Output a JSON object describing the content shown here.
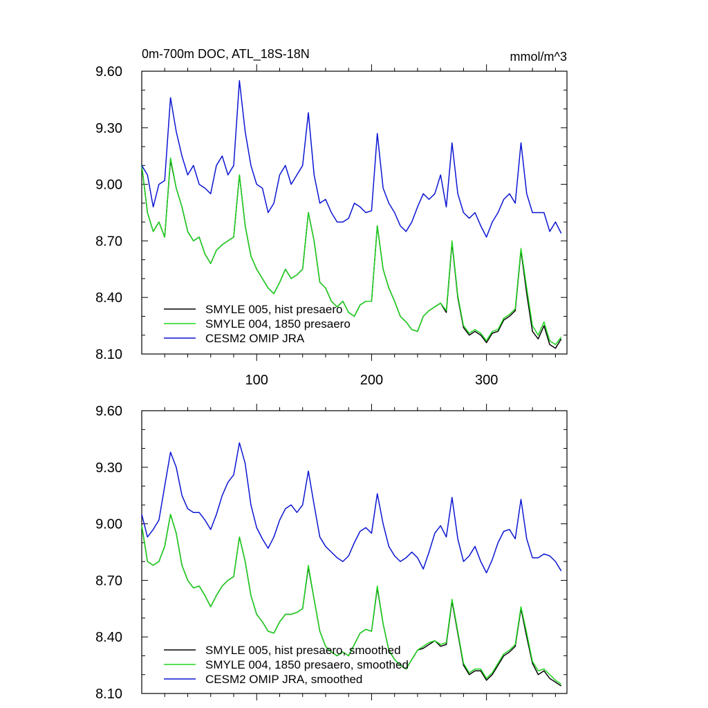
{
  "chart_data": [
    {
      "type": "line",
      "title": "0m-700m DOC, ATL_18S-18N",
      "units": "mmol/m^3",
      "xlim": [
        0,
        370
      ],
      "ylim": [
        8.1,
        9.6
      ],
      "xticks": [
        100,
        200,
        300
      ],
      "xtick_labels": [
        "100",
        "200",
        "300"
      ],
      "yticks": [
        8.1,
        8.4,
        8.7,
        9.0,
        9.3,
        9.6
      ],
      "ytick_labels": [
        "8.10",
        "8.40",
        "8.70",
        "9.00",
        "9.30",
        "9.60"
      ],
      "legend": "bottom-left",
      "legend_entries": [
        "SMYLE 005, hist presaero",
        "SMYLE 004, 1850 presaero",
        "CESM2 OMIP JRA"
      ],
      "series": [
        {
          "name": "SMYLE 005, hist presaero",
          "color": "#000000",
          "x": [
            0,
            5,
            10,
            15,
            20,
            25,
            30,
            35,
            40,
            45,
            50,
            55,
            60,
            65,
            70,
            75,
            80,
            85,
            90,
            95,
            100,
            105,
            110,
            115,
            120,
            125,
            130,
            135,
            140,
            145,
            150,
            155,
            160,
            165,
            170,
            175,
            180,
            185,
            190,
            195,
            200,
            205,
            210,
            215,
            220,
            225,
            230,
            235,
            240,
            245,
            250,
            255,
            260,
            265,
            270,
            275,
            280,
            285,
            290,
            295,
            300,
            305,
            310,
            315,
            320,
            325,
            330,
            335,
            340,
            345,
            350,
            355,
            360,
            365
          ],
          "values": [
            9.1,
            8.85,
            8.75,
            8.8,
            8.72,
            9.13,
            8.98,
            8.88,
            8.75,
            8.7,
            8.72,
            8.63,
            8.58,
            8.65,
            8.68,
            8.7,
            8.72,
            9.05,
            8.78,
            8.62,
            8.55,
            8.5,
            8.45,
            8.42,
            8.48,
            8.55,
            8.5,
            8.52,
            8.55,
            8.85,
            8.7,
            8.48,
            8.45,
            8.38,
            8.35,
            8.38,
            8.32,
            8.3,
            8.36,
            8.38,
            8.38,
            8.78,
            8.55,
            8.45,
            8.38,
            8.3,
            8.27,
            8.23,
            8.22,
            8.3,
            8.33,
            8.35,
            8.37,
            8.32,
            8.69,
            8.4,
            8.24,
            8.2,
            8.22,
            8.2,
            8.16,
            8.21,
            8.22,
            8.28,
            8.3,
            8.33,
            8.65,
            8.42,
            8.22,
            8.18,
            8.25,
            8.15,
            8.13,
            8.18
          ]
        },
        {
          "name": "SMYLE 004, 1850 presaero",
          "color": "#1fd51f",
          "x": [
            0,
            5,
            10,
            15,
            20,
            25,
            30,
            35,
            40,
            45,
            50,
            55,
            60,
            65,
            70,
            75,
            80,
            85,
            90,
            95,
            100,
            105,
            110,
            115,
            120,
            125,
            130,
            135,
            140,
            145,
            150,
            155,
            160,
            165,
            170,
            175,
            180,
            185,
            190,
            195,
            200,
            205,
            210,
            215,
            220,
            225,
            230,
            235,
            240,
            245,
            250,
            255,
            260,
            265,
            270,
            275,
            280,
            285,
            290,
            295,
            300,
            305,
            310,
            315,
            320,
            325,
            330,
            335,
            340,
            345,
            350,
            355,
            360,
            365
          ],
          "values": [
            9.1,
            8.85,
            8.75,
            8.8,
            8.72,
            9.14,
            8.98,
            8.88,
            8.75,
            8.7,
            8.72,
            8.63,
            8.58,
            8.65,
            8.68,
            8.7,
            8.72,
            9.05,
            8.78,
            8.62,
            8.55,
            8.5,
            8.45,
            8.42,
            8.48,
            8.55,
            8.5,
            8.52,
            8.55,
            8.85,
            8.7,
            8.48,
            8.45,
            8.38,
            8.35,
            8.38,
            8.32,
            8.3,
            8.36,
            8.38,
            8.38,
            8.78,
            8.55,
            8.45,
            8.38,
            8.3,
            8.27,
            8.23,
            8.22,
            8.3,
            8.33,
            8.35,
            8.37,
            8.33,
            8.7,
            8.41,
            8.25,
            8.21,
            8.23,
            8.21,
            8.17,
            8.22,
            8.23,
            8.29,
            8.31,
            8.34,
            8.66,
            8.45,
            8.25,
            8.2,
            8.27,
            8.17,
            8.15,
            8.19
          ]
        },
        {
          "name": "CESM2 OMIP JRA",
          "color": "#0a14d2",
          "x": [
            0,
            5,
            10,
            15,
            20,
            25,
            30,
            35,
            40,
            45,
            50,
            55,
            60,
            65,
            70,
            75,
            80,
            85,
            90,
            95,
            100,
            105,
            110,
            115,
            120,
            125,
            130,
            135,
            140,
            145,
            150,
            155,
            160,
            165,
            170,
            175,
            180,
            185,
            190,
            195,
            200,
            205,
            210,
            215,
            220,
            225,
            230,
            235,
            240,
            245,
            250,
            255,
            260,
            265,
            270,
            275,
            280,
            285,
            290,
            295,
            300,
            305,
            310,
            315,
            320,
            325,
            330,
            335,
            340,
            345,
            350,
            355,
            360,
            365
          ],
          "values": [
            9.1,
            9.05,
            8.88,
            9.0,
            9.02,
            9.46,
            9.28,
            9.15,
            9.05,
            9.1,
            9.0,
            8.98,
            8.95,
            9.1,
            9.15,
            9.05,
            9.1,
            9.55,
            9.28,
            9.1,
            9.0,
            8.98,
            8.85,
            8.9,
            9.05,
            9.1,
            9.0,
            9.05,
            9.1,
            9.38,
            9.05,
            8.9,
            8.92,
            8.85,
            8.8,
            8.8,
            8.82,
            8.9,
            8.88,
            8.85,
            8.86,
            9.27,
            8.98,
            8.9,
            8.85,
            8.78,
            8.75,
            8.8,
            8.88,
            8.95,
            8.92,
            8.95,
            9.05,
            8.88,
            9.22,
            8.95,
            8.85,
            8.82,
            8.85,
            8.78,
            8.72,
            8.8,
            8.85,
            8.92,
            8.95,
            8.9,
            9.22,
            8.95,
            8.85,
            8.85,
            8.85,
            8.75,
            8.8,
            8.74
          ]
        }
      ]
    },
    {
      "type": "line",
      "title": "",
      "xlim": [
        0,
        370
      ],
      "ylim": [
        8.1,
        9.6
      ],
      "xticks": [
        100,
        200,
        300
      ],
      "yticks": [
        8.1,
        8.4,
        8.7,
        9.0,
        9.3,
        9.6
      ],
      "ytick_labels": [
        "8.10",
        "8.40",
        "8.70",
        "9.00",
        "9.30",
        "9.60"
      ],
      "legend": "bottom-left",
      "legend_entries": [
        "SMYLE 005, hist presaero, smoothed",
        "SMYLE 004, 1850 presaero, smoothed",
        "CESM2 OMIP JRA, smoothed"
      ],
      "series": [
        {
          "name": "SMYLE 005, hist presaero, smoothed",
          "color": "#000000",
          "x": [
            0,
            5,
            10,
            15,
            20,
            25,
            30,
            35,
            40,
            45,
            50,
            55,
            60,
            65,
            70,
            75,
            80,
            85,
            90,
            95,
            100,
            105,
            110,
            115,
            120,
            125,
            130,
            135,
            140,
            145,
            150,
            155,
            160,
            165,
            170,
            175,
            180,
            185,
            190,
            195,
            200,
            205,
            210,
            215,
            220,
            225,
            230,
            235,
            240,
            245,
            250,
            255,
            260,
            265,
            270,
            275,
            280,
            285,
            290,
            295,
            300,
            305,
            310,
            315,
            320,
            325,
            330,
            335,
            340,
            345,
            350,
            355,
            360,
            365
          ],
          "values": [
            8.99,
            8.8,
            8.78,
            8.8,
            8.88,
            9.05,
            8.95,
            8.78,
            8.7,
            8.66,
            8.67,
            8.62,
            8.56,
            8.62,
            8.67,
            8.7,
            8.72,
            8.93,
            8.8,
            8.62,
            8.52,
            8.48,
            8.43,
            8.42,
            8.48,
            8.52,
            8.52,
            8.53,
            8.55,
            8.77,
            8.6,
            8.43,
            8.35,
            8.32,
            8.3,
            8.32,
            8.3,
            8.36,
            8.42,
            8.44,
            8.43,
            8.66,
            8.47,
            8.33,
            8.28,
            8.25,
            8.23,
            8.28,
            8.33,
            8.34,
            8.36,
            8.38,
            8.35,
            8.36,
            8.59,
            8.42,
            8.25,
            8.2,
            8.22,
            8.22,
            8.17,
            8.2,
            8.25,
            8.3,
            8.32,
            8.35,
            8.55,
            8.4,
            8.26,
            8.2,
            8.22,
            8.18,
            8.16,
            8.14
          ]
        },
        {
          "name": "SMYLE 004, 1850 presaero, smoothed",
          "color": "#1fd51f",
          "x": [
            0,
            5,
            10,
            15,
            20,
            25,
            30,
            35,
            40,
            45,
            50,
            55,
            60,
            65,
            70,
            75,
            80,
            85,
            90,
            95,
            100,
            105,
            110,
            115,
            120,
            125,
            130,
            135,
            140,
            145,
            150,
            155,
            160,
            165,
            170,
            175,
            180,
            185,
            190,
            195,
            200,
            205,
            210,
            215,
            220,
            225,
            230,
            235,
            240,
            245,
            250,
            255,
            260,
            265,
            270,
            275,
            280,
            285,
            290,
            295,
            300,
            305,
            310,
            315,
            320,
            325,
            330,
            335,
            340,
            345,
            350,
            355,
            360,
            365
          ],
          "values": [
            8.99,
            8.8,
            8.78,
            8.8,
            8.88,
            9.05,
            8.95,
            8.78,
            8.7,
            8.66,
            8.67,
            8.62,
            8.56,
            8.62,
            8.67,
            8.7,
            8.72,
            8.93,
            8.8,
            8.62,
            8.52,
            8.48,
            8.43,
            8.42,
            8.48,
            8.52,
            8.52,
            8.53,
            8.55,
            8.78,
            8.6,
            8.43,
            8.35,
            8.32,
            8.3,
            8.32,
            8.3,
            8.36,
            8.42,
            8.44,
            8.43,
            8.67,
            8.47,
            8.33,
            8.28,
            8.25,
            8.23,
            8.28,
            8.33,
            8.35,
            8.37,
            8.38,
            8.36,
            8.37,
            8.6,
            8.43,
            8.26,
            8.21,
            8.23,
            8.23,
            8.18,
            8.21,
            8.26,
            8.31,
            8.33,
            8.36,
            8.56,
            8.42,
            8.27,
            8.22,
            8.23,
            8.2,
            8.17,
            8.15
          ]
        },
        {
          "name": "CESM2 OMIP JRA, smoothed",
          "color": "#0a14d2",
          "x": [
            0,
            5,
            10,
            15,
            20,
            25,
            30,
            35,
            40,
            45,
            50,
            55,
            60,
            65,
            70,
            75,
            80,
            85,
            90,
            95,
            100,
            105,
            110,
            115,
            120,
            125,
            130,
            135,
            140,
            145,
            150,
            155,
            160,
            165,
            170,
            175,
            180,
            185,
            190,
            195,
            200,
            205,
            210,
            215,
            220,
            225,
            230,
            235,
            240,
            245,
            250,
            255,
            260,
            265,
            270,
            275,
            280,
            285,
            290,
            295,
            300,
            305,
            310,
            315,
            320,
            325,
            330,
            335,
            340,
            345,
            350,
            355,
            360,
            365
          ],
          "values": [
            9.05,
            8.93,
            8.97,
            9.02,
            9.2,
            9.38,
            9.3,
            9.15,
            9.08,
            9.06,
            9.06,
            9.02,
            8.97,
            9.05,
            9.15,
            9.22,
            9.26,
            9.43,
            9.32,
            9.1,
            8.98,
            8.92,
            8.87,
            8.93,
            9.02,
            9.08,
            9.1,
            9.06,
            9.1,
            9.28,
            9.1,
            8.93,
            8.88,
            8.85,
            8.82,
            8.8,
            8.83,
            8.9,
            8.96,
            8.98,
            8.95,
            9.16,
            9.0,
            8.88,
            8.83,
            8.8,
            8.82,
            8.85,
            8.82,
            8.76,
            8.85,
            8.95,
            8.99,
            8.93,
            9.14,
            8.92,
            8.8,
            8.83,
            8.88,
            8.8,
            8.74,
            8.81,
            8.9,
            8.96,
            8.97,
            8.92,
            9.13,
            8.92,
            8.82,
            8.82,
            8.84,
            8.83,
            8.8,
            8.75
          ]
        }
      ]
    }
  ]
}
